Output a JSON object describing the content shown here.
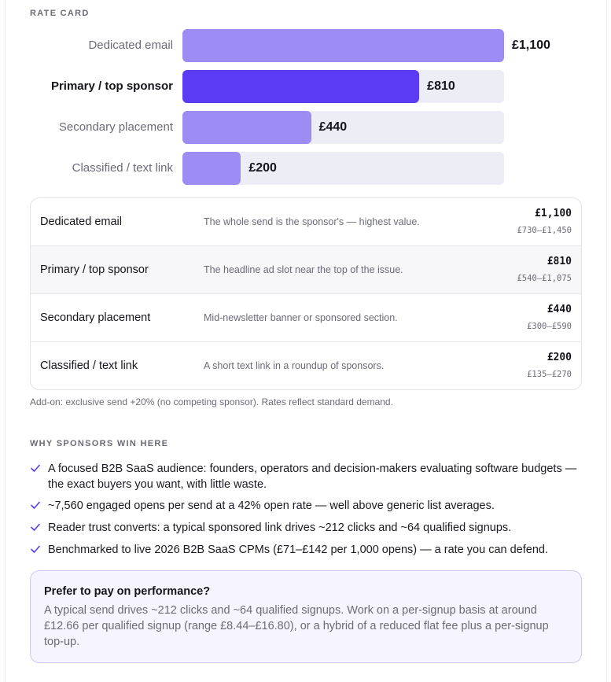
{
  "rate_card": {
    "title": "RATE CARD"
  },
  "chart_data": {
    "type": "bar",
    "orientation": "horizontal",
    "categories": [
      "Dedicated email",
      "Primary / top sponsor",
      "Secondary placement",
      "Classified / text link"
    ],
    "values": [
      1100,
      810,
      440,
      200
    ],
    "value_labels": [
      "£1,100",
      "£810",
      "£440",
      "£200"
    ],
    "highlighted_category": "Primary / top sponsor",
    "xlim": [
      0,
      1100
    ],
    "colors": {
      "default": "#9e8cf5",
      "highlight": "#5b3cf4",
      "track": "#ededf5"
    }
  },
  "table": {
    "rows": [
      {
        "name": "Dedicated email",
        "description": "The whole send is the sponsor's — highest value.",
        "price": "£1,100",
        "range": "£730–£1,450"
      },
      {
        "name": "Primary / top sponsor",
        "description": "The headline ad slot near the top of the issue.",
        "price": "£810",
        "range": "£540–£1,075"
      },
      {
        "name": "Secondary placement",
        "description": "Mid-newsletter banner or sponsored section.",
        "price": "£440",
        "range": "£300–£590"
      },
      {
        "name": "Classified / text link",
        "description": "A short text link in a roundup of sponsors.",
        "price": "£200",
        "range": "£135–£270"
      }
    ]
  },
  "addon_note": "Add-on: exclusive send +20% (no competing sponsor). Rates reflect standard demand.",
  "why": {
    "title": "WHY SPONSORS WIN HERE",
    "icon": "check-icon",
    "items": [
      "A focused B2B SaaS audience: founders, operators and decision-makers evaluating software budgets — the exact buyers you want, with little waste.",
      "~7,560 engaged opens per send at a 42% open rate — well above generic list averages.",
      "Reader trust converts: a typical sponsored link drives ~212 clicks and ~64 qualified signups.",
      "Benchmarked to live 2026 B2B SaaS CPMs (£71–£142 per 1,000 opens) — a rate you can defend."
    ]
  },
  "callout": {
    "title": "Prefer to pay on performance?",
    "body": "A typical send drives ~212 clicks and ~64 qualified signups. Work on a per-signup basis at around £12.66 per qualified signup (range £8.44–£16.80), or a hybrid of a reduced flat fee plus a per-signup top-up."
  },
  "colors": {
    "accent": "#5b3cf4",
    "callout_bg": "#f6f4ff",
    "callout_border": "#cfc7f5"
  }
}
